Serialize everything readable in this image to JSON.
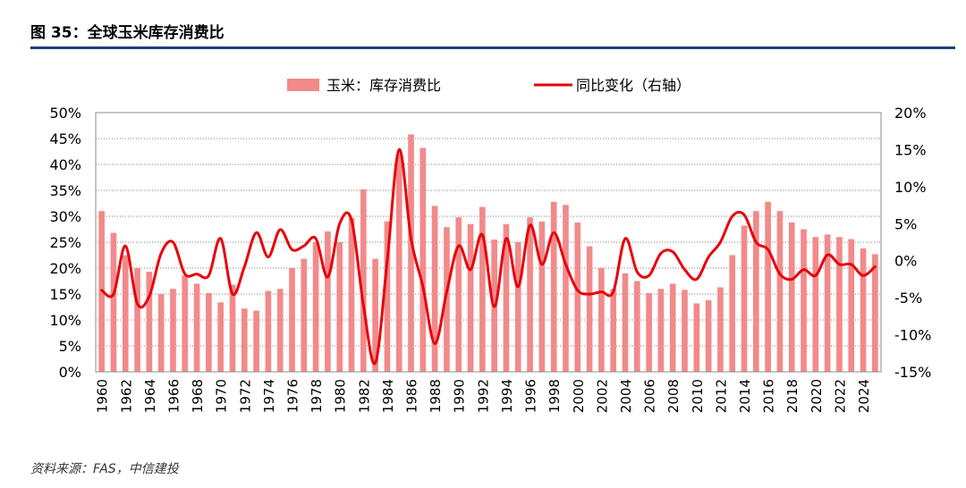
{
  "figure": {
    "title": "图 35：全球玉米库存消费比",
    "source": "资料来源：FAS，中信建投"
  },
  "colors": {
    "bar": "#f28a8a",
    "line": "#e8000b",
    "grid": "#7f7f7f",
    "rule": "#1f3f7a"
  },
  "chart_data": {
    "type": "bar",
    "title": "全球玉米库存消费比",
    "categories": [
      1960,
      1961,
      1962,
      1963,
      1964,
      1965,
      1966,
      1967,
      1968,
      1969,
      1970,
      1971,
      1972,
      1973,
      1974,
      1975,
      1976,
      1977,
      1978,
      1979,
      1980,
      1981,
      1982,
      1983,
      1984,
      1985,
      1986,
      1987,
      1988,
      1989,
      1990,
      1991,
      1992,
      1993,
      1994,
      1995,
      1996,
      1997,
      1998,
      1999,
      2000,
      2001,
      2002,
      2003,
      2004,
      2005,
      2006,
      2007,
      2008,
      2009,
      2010,
      2011,
      2012,
      2013,
      2014,
      2015,
      2016,
      2017,
      2018,
      2019,
      2020,
      2021,
      2022,
      2023,
      2024,
      2025
    ],
    "tick_labels": [
      "1960",
      "1962",
      "1964",
      "1966",
      "1968",
      "1970",
      "1972",
      "1974",
      "1976",
      "1978",
      "1980",
      "1982",
      "1984",
      "1986",
      "1988",
      "1990",
      "1992",
      "1994",
      "1996",
      "1998",
      "2000",
      "2002",
      "2004",
      "2006",
      "2008",
      "2010",
      "2012",
      "2014",
      "2016",
      "2018",
      "2020",
      "2022",
      "2024"
    ],
    "series": [
      {
        "name": "玉米：库存消费比",
        "type": "bar",
        "axis": "left",
        "values": [
          31.0,
          26.8,
          22.5,
          20.0,
          19.3,
          15.0,
          16.0,
          18.6,
          17.0,
          15.2,
          13.4,
          16.8,
          12.2,
          11.8,
          15.6,
          16.0,
          20.0,
          21.8,
          25.0,
          27.1,
          25.0,
          29.7,
          35.2,
          21.8,
          29.0,
          42.0,
          45.8,
          43.2,
          32.0,
          27.9,
          29.8,
          28.5,
          31.8,
          25.5,
          28.5,
          25.0,
          29.8,
          29.0,
          32.8,
          32.2,
          28.8,
          24.2,
          20.0,
          16.0,
          19.0,
          17.5,
          15.2,
          16.0,
          17.0,
          15.8,
          13.2,
          13.8,
          16.3,
          22.5,
          28.2,
          31.0,
          32.8,
          31.0,
          28.8,
          27.5,
          26.0,
          26.5,
          26.0,
          25.6,
          23.8,
          22.7
        ]
      },
      {
        "name": "同比变化（右轴）",
        "type": "line",
        "axis": "right",
        "values": [
          -4.0,
          -4.5,
          2.0,
          -5.8,
          -4.8,
          1.0,
          2.5,
          -1.8,
          -1.8,
          -2.0,
          3.0,
          -4.5,
          -0.8,
          3.8,
          0.5,
          4.2,
          1.5,
          2.0,
          3.0,
          -2.2,
          5.0,
          5.5,
          -6.0,
          -13.8,
          0.0,
          15.0,
          3.0,
          -3.5,
          -11.2,
          -4.2,
          2.0,
          -1.2,
          3.5,
          -6.2,
          3.0,
          -3.5,
          4.8,
          -0.5,
          3.8,
          -0.5,
          -4.0,
          -4.5,
          -4.2,
          -4.2,
          3.0,
          -1.5,
          -2.0,
          1.0,
          1.2,
          -1.2,
          -2.5,
          0.5,
          2.5,
          6.0,
          6.2,
          2.5,
          1.5,
          -1.8,
          -2.5,
          -1.2,
          -2.0,
          0.8,
          -0.5,
          -0.5,
          -2.0,
          -0.8
        ]
      }
    ],
    "y_left": {
      "min": 0,
      "max": 50,
      "step": 5,
      "unit": "%"
    },
    "y_right": {
      "min": -15,
      "max": 20,
      "step": 5,
      "unit": "%"
    },
    "left_tick_labels": [
      "0%",
      "5%",
      "10%",
      "15%",
      "20%",
      "25%",
      "30%",
      "35%",
      "40%",
      "45%",
      "50%"
    ],
    "right_tick_labels": [
      "-15%",
      "-10%",
      "-5%",
      "0%",
      "5%",
      "10%",
      "15%",
      "20%"
    ],
    "grid": true,
    "legend_position": "top-center"
  }
}
